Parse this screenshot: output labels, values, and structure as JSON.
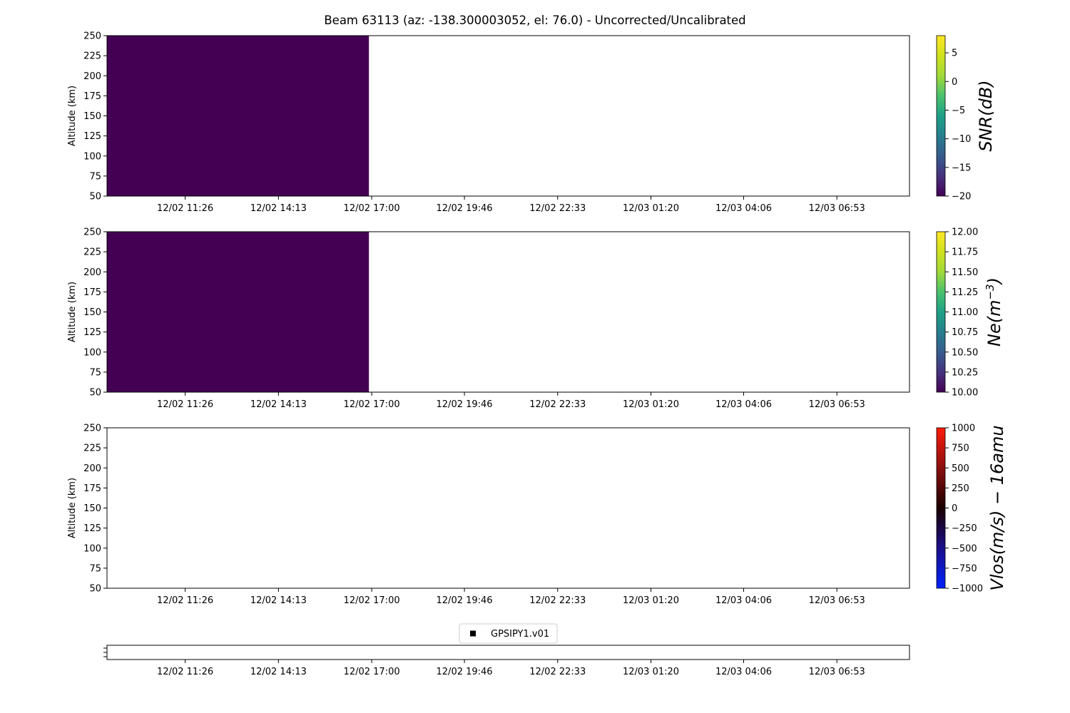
{
  "figure": {
    "title": "Beam 63113 (az: -138.300003052, el: 76.0) - Uncorrected/Uncalibrated",
    "x_tick_labels": [
      "12/02 11:26",
      "12/02 14:13",
      "12/02 17:00",
      "12/02 19:46",
      "12/02 22:33",
      "12/03 01:20",
      "12/03 04:06",
      "12/03 06:53"
    ]
  },
  "chart_data": [
    {
      "type": "heatmap",
      "name": "snr",
      "ylabel": "Altitude (km)",
      "ylim": [
        50,
        250
      ],
      "yticks": [
        50,
        75,
        100,
        125,
        150,
        175,
        200,
        225,
        250
      ],
      "x_range_hours": [
        9.1,
        33.05
      ],
      "x_tick_hours": [
        11.433,
        14.217,
        17.0,
        19.767,
        22.55,
        25.333,
        28.1,
        30.883
      ],
      "filled_block": {
        "x_start_hours": 9.1,
        "x_end_hours": 16.917,
        "y_start": 50,
        "y_end": 250,
        "value": -20,
        "color": "#440154"
      },
      "colorbar": {
        "label": "SNR(dB)",
        "range": [
          -20,
          8
        ],
        "ticks": [
          -20,
          -15,
          -10,
          -5,
          0,
          5
        ],
        "tick_labels": [
          "−20",
          "−15",
          "−10",
          "−5",
          "0",
          "5"
        ],
        "colormap": "viridis"
      }
    },
    {
      "type": "heatmap",
      "name": "ne",
      "ylabel": "Altitude (km)",
      "ylim": [
        50,
        250
      ],
      "yticks": [
        50,
        75,
        100,
        125,
        150,
        175,
        200,
        225,
        250
      ],
      "x_range_hours": [
        9.1,
        33.05
      ],
      "x_tick_hours": [
        11.433,
        14.217,
        17.0,
        19.767,
        22.55,
        25.333,
        28.1,
        30.883
      ],
      "filled_block": {
        "x_start_hours": 9.1,
        "x_end_hours": 16.917,
        "y_start": 50,
        "y_end": 250,
        "value": 10.0,
        "color": "#440154"
      },
      "colorbar": {
        "label": "Ne(m^-3)",
        "range": [
          10,
          12
        ],
        "ticks": [
          10,
          10.25,
          10.5,
          10.75,
          11,
          11.25,
          11.5,
          11.75,
          12
        ],
        "tick_labels": [
          "10.00",
          "10.25",
          "10.50",
          "10.75",
          "11.00",
          "11.25",
          "11.50",
          "11.75",
          "12.00"
        ],
        "colormap": "viridis"
      }
    },
    {
      "type": "heatmap",
      "name": "vlos",
      "ylabel": "Altitude (km)",
      "ylim": [
        50,
        250
      ],
      "yticks": [
        50,
        75,
        100,
        125,
        150,
        175,
        200,
        225,
        250
      ],
      "x_range_hours": [
        9.1,
        33.05
      ],
      "x_tick_hours": [
        11.433,
        14.217,
        17.0,
        19.767,
        22.55,
        25.333,
        28.1,
        30.883
      ],
      "filled_block": null,
      "colorbar": {
        "label": "Vlos(m/s) − 16amu",
        "range": [
          -1000,
          1000
        ],
        "ticks": [
          -1000,
          -750,
          -500,
          -250,
          0,
          250,
          500,
          750,
          1000
        ],
        "tick_labels": [
          "−1000",
          "−750",
          "−500",
          "−250",
          "0",
          "250",
          "500",
          "750",
          "1000"
        ],
        "colormap": "blue-black-red"
      }
    },
    {
      "type": "scatter",
      "name": "status",
      "legend": [
        "GPSIPY1.v01"
      ],
      "x_range_hours": [
        9.1,
        33.05
      ],
      "x_tick_hours": [
        11.433,
        14.217,
        17.0,
        19.767,
        22.55,
        25.333,
        28.1,
        30.883
      ],
      "series": []
    }
  ]
}
